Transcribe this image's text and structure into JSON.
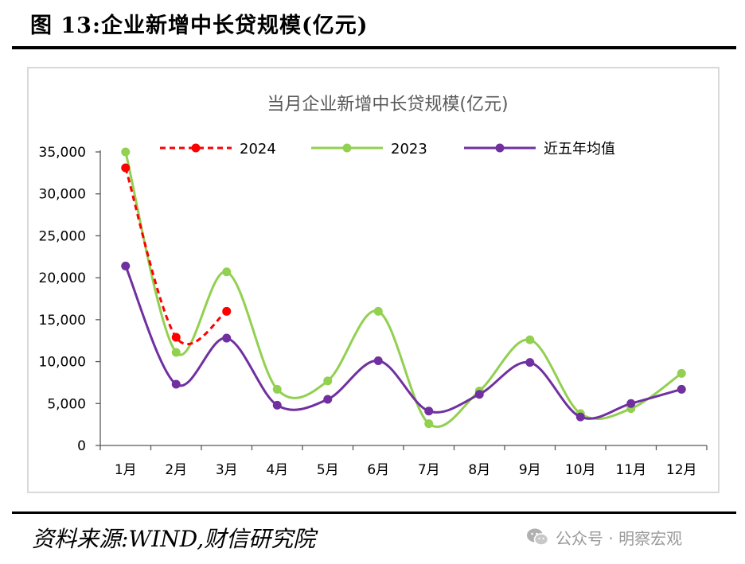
{
  "figure": {
    "title": "图 13:企业新增中长贷规模(亿元)",
    "source": "资料来源:WIND,财信研究院",
    "watermark": "公众号 · 明察宏观"
  },
  "colors": {
    "series_2024": "#ff0000",
    "series_2023": "#92d050",
    "series_avg": "#7030a0",
    "axis": "#595959",
    "title_text": "#595959"
  },
  "chart_data": {
    "type": "line",
    "title": "当月企业新增中长贷规模(亿元)",
    "categories": [
      "1月",
      "2月",
      "3月",
      "4月",
      "5月",
      "6月",
      "7月",
      "8月",
      "9月",
      "10月",
      "11月",
      "12月"
    ],
    "ylim": [
      0,
      35000
    ],
    "yticks": [
      0,
      5000,
      10000,
      15000,
      20000,
      25000,
      30000,
      35000
    ],
    "ytick_labels": [
      "0",
      "5,000",
      "10,000",
      "15,000",
      "20,000",
      "25,000",
      "30,000",
      "35,000"
    ],
    "grid": false,
    "legend_position": "top",
    "series": [
      {
        "name": "2024",
        "style": "dashed",
        "values": [
          33100,
          12900,
          16000,
          null,
          null,
          null,
          null,
          null,
          null,
          null,
          null,
          null
        ]
      },
      {
        "name": "2023",
        "style": "solid",
        "values": [
          35000,
          11100,
          20700,
          6700,
          7700,
          16000,
          2600,
          6500,
          12600,
          3800,
          4400,
          8600
        ]
      },
      {
        "name": "近五年均值",
        "style": "solid",
        "values": [
          21400,
          7300,
          12800,
          4800,
          5500,
          10100,
          4100,
          6100,
          9900,
          3400,
          5000,
          6700
        ]
      }
    ]
  }
}
